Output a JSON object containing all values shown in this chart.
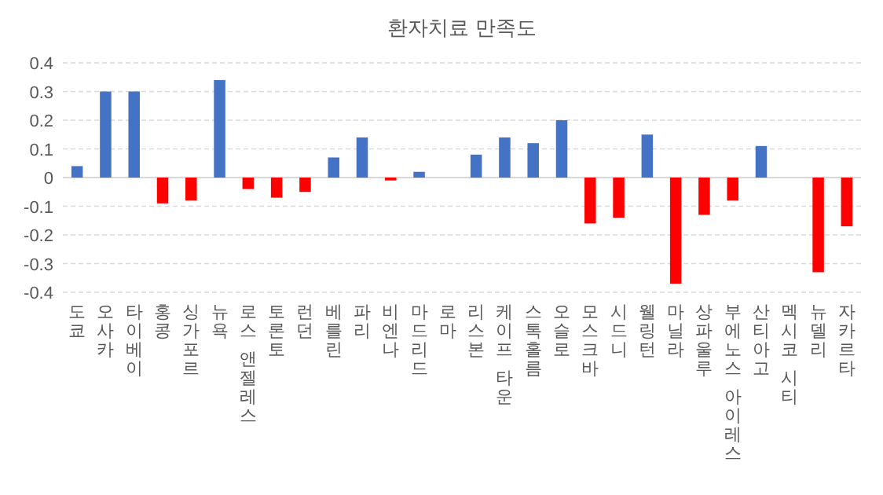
{
  "chart_data": {
    "type": "bar",
    "title": "환자치료 만족도",
    "categories": [
      "도쿄",
      "오사카",
      "타이베이",
      "홍콩",
      "싱가포르",
      "뉴욕",
      "로스 앤젤레스",
      "토론토",
      "런던",
      "베를린",
      "파리",
      "비엔나",
      "마드리드",
      "로마",
      "리스본",
      "케이프 타운",
      "스톡홀름",
      "오슬로",
      "모스크바",
      "시드니",
      "웰링턴",
      "마닐라",
      "상파울루",
      "부에노스 아이레스",
      "산티아고",
      "멕시코 시티",
      "뉴델리",
      "자카르타"
    ],
    "values": [
      0.04,
      0.3,
      0.3,
      -0.09,
      -0.08,
      0.34,
      -0.04,
      -0.07,
      -0.05,
      0.07,
      0.14,
      -0.01,
      0.02,
      0,
      0.08,
      0.14,
      0.12,
      0.2,
      -0.16,
      -0.14,
      0.15,
      -0.37,
      -0.13,
      -0.08,
      0.11,
      0,
      -0.33,
      -0.17
    ],
    "colors": [
      "#4472c4",
      "#4472c4",
      "#4472c4",
      "#ff0000",
      "#ff0000",
      "#4472c4",
      "#ff0000",
      "#ff0000",
      "#ff0000",
      "#4472c4",
      "#4472c4",
      "#ff0000",
      "#4472c4",
      "#4472c4",
      "#4472c4",
      "#4472c4",
      "#4472c4",
      "#4472c4",
      "#ff0000",
      "#ff0000",
      "#4472c4",
      "#ff0000",
      "#ff0000",
      "#ff0000",
      "#4472c4",
      "#4472c4",
      "#ff0000",
      "#ff0000"
    ],
    "ylim": [
      -0.4,
      0.4
    ],
    "yticks": [
      {
        "value": -0.4,
        "label": "-0.4"
      },
      {
        "value": -0.3,
        "label": "-0.3"
      },
      {
        "value": -0.2,
        "label": "-0.2"
      },
      {
        "value": -0.1,
        "label": "-0.1"
      },
      0,
      0.1,
      0.2,
      0.3,
      0.4
    ],
    "grid": "y"
  }
}
